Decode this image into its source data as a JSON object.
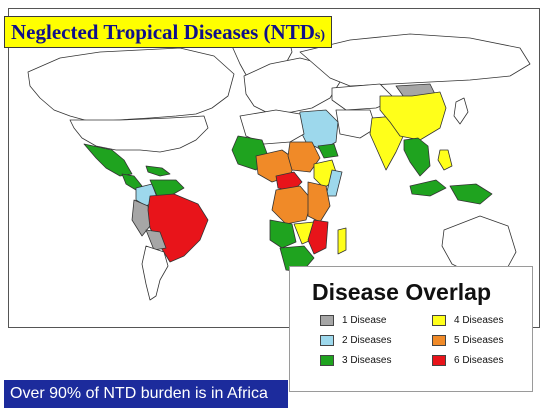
{
  "title": {
    "main": "Neglected Tropical Diseases (NTD",
    "small": "s)"
  },
  "legend": {
    "title": "Disease Overlap",
    "items": [
      {
        "label": "1 Disease",
        "color": "#a6a6a6"
      },
      {
        "label": "2 Diseases",
        "color": "#9dd8ec"
      },
      {
        "label": "3 Diseases",
        "color": "#1fa31f"
      },
      {
        "label": "4 Diseases",
        "color": "#ffff1a"
      },
      {
        "label": "5 Diseases",
        "color": "#f08a28"
      },
      {
        "label": "6 Diseases",
        "color": "#e8141a"
      }
    ]
  },
  "banner": {
    "text": "Over 90% of NTD burden is in Africa"
  },
  "colors": {
    "land_default": "#ffffff",
    "outline": "#333333",
    "title_bg": "#ffff00",
    "title_fg": "#10108a",
    "banner_bg": "#1c2b9c"
  }
}
